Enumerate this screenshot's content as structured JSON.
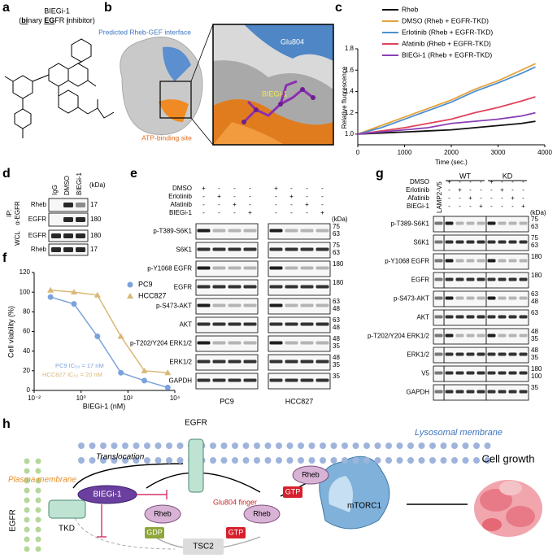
{
  "panel_labels": [
    "a",
    "b",
    "c",
    "d",
    "e",
    "f",
    "g",
    "h"
  ],
  "a": {
    "title": "BIEGi-1",
    "subtitle_parts": [
      "(",
      "bi",
      "nary ",
      "EG",
      "FR ",
      "i",
      "nhibitor)"
    ]
  },
  "b": {
    "interface_label": "Predicted Rheb-GEF interface",
    "atp_label": "ATP-binding site",
    "residue_label": "Glu804",
    "ligand_label": "BIEGi-1"
  },
  "chart_data": [
    {
      "type": "line",
      "y_label": "Relative fluorescence",
      "x_label": "Time (sec.)",
      "x": [
        0,
        500,
        1000,
        1500,
        2000,
        2500,
        3000,
        3500,
        3800
      ],
      "series": [
        {
          "name": "Rheb",
          "color": "#111111",
          "values": [
            1.0,
            1.01,
            1.02,
            1.03,
            1.04,
            1.06,
            1.08,
            1.1,
            1.12
          ]
        },
        {
          "name": "DMSO (Rheb + EGFR-TKD)",
          "color": "#e4a33b",
          "values": [
            1.0,
            1.08,
            1.16,
            1.24,
            1.32,
            1.42,
            1.5,
            1.6,
            1.66
          ]
        },
        {
          "name": "Erlotinib (Rheb + EGFR-TKD)",
          "color": "#4b8fd0",
          "values": [
            1.0,
            1.06,
            1.14,
            1.22,
            1.3,
            1.4,
            1.48,
            1.57,
            1.63
          ]
        },
        {
          "name": "Afatinib (Rheb + EGFR-TKD)",
          "color": "#e0435c",
          "values": [
            1.0,
            1.03,
            1.06,
            1.1,
            1.14,
            1.2,
            1.25,
            1.31,
            1.35
          ]
        },
        {
          "name": "BIEGi-1 (Rheb + EGFR-TKD)",
          "color": "#8b3fb5",
          "values": [
            1.0,
            1.02,
            1.04,
            1.06,
            1.1,
            1.12,
            1.14,
            1.17,
            1.2
          ]
        }
      ],
      "xlim": [
        0,
        4000
      ],
      "xticks": [
        0,
        1000,
        2000,
        3000,
        4000
      ],
      "ylim": [
        0.9,
        1.8
      ],
      "yticks": [
        {
          "value": 1,
          "label": "1.0"
        },
        {
          "value": 1.2,
          "label": "1.2"
        },
        {
          "value": 1.4,
          "label": "1.4"
        },
        {
          "value": 1.6,
          "label": "1.6"
        },
        {
          "value": 1.8,
          "label": "1.8"
        }
      ],
      "legend": "top-right"
    },
    {
      "type": "scatter",
      "y_label": "Cell viability (%)",
      "x_label": "BIEGi-1 (nM)",
      "log_x": true,
      "x": [
        0.05,
        0.5,
        5,
        50,
        500,
        5000
      ],
      "series": [
        {
          "name": "PC9",
          "color": "#7ba3dc",
          "marker": "circle",
          "values": [
            95,
            88,
            55,
            18,
            10,
            3
          ]
        },
        {
          "name": "HCC827",
          "color": "#d9b877",
          "marker": "triangle",
          "values": [
            102,
            100,
            97,
            55,
            20,
            18
          ]
        }
      ],
      "annotations": [
        "PC9 IC₅₀ = 17 nM",
        "HCC827 IC₅₀ = 20 nM"
      ],
      "xlim": [
        0.01,
        10000
      ],
      "xticks": [
        {
          "value": 0.01,
          "label": "10⁻²"
        },
        {
          "value": 1,
          "label": "10⁰"
        },
        {
          "value": 100,
          "label": "10²"
        },
        {
          "value": 10000,
          "label": "10⁴"
        }
      ],
      "ylim": [
        0,
        120
      ],
      "yticks": [
        0,
        20,
        40,
        60,
        80,
        100,
        120
      ],
      "legend": "top-right"
    }
  ],
  "d": {
    "ip": "IP:",
    "antibody": "α-EGFR",
    "wcl": "WCL",
    "lanes": [
      "IgG",
      "DMSO",
      "BIEGi-1"
    ],
    "rows": [
      "Rheb",
      "EGFR",
      "EGFR",
      "Rheb"
    ],
    "kda": [
      "17",
      "180",
      "180",
      "17"
    ],
    "unit": "(kDa)"
  },
  "e": {
    "treatments": [
      "DMSO",
      "Erlotinib",
      "Afatinib",
      "BIEGi-1"
    ],
    "signs": [
      [
        "+",
        "-",
        "-",
        "-",
        "+",
        "-",
        "-",
        "-"
      ],
      [
        "-",
        "+",
        "-",
        "-",
        "-",
        "+",
        "-",
        "-"
      ],
      [
        "-",
        "-",
        "+",
        "-",
        "-",
        "-",
        "+",
        "-"
      ],
      [
        "-",
        "-",
        "-",
        "+",
        "-",
        "-",
        "-",
        "+"
      ]
    ],
    "unit": "(kDa)",
    "rows": [
      "p-T389-S6K1",
      "S6K1",
      "p-Y1068 EGFR",
      "EGFR",
      "p-S473-AKT",
      "AKT",
      "p-T202/Y204 ERK1/2",
      "ERK1/2",
      "GAPDH"
    ],
    "kda": [
      [
        "75",
        "63"
      ],
      [
        "75",
        "63"
      ],
      [
        "180"
      ],
      [
        "180"
      ],
      [
        "63",
        "48"
      ],
      [
        "63",
        "48"
      ],
      [
        "48",
        "35"
      ],
      [
        "48",
        "35"
      ],
      [
        "35"
      ]
    ],
    "cells": [
      "PC9",
      "HCC827"
    ]
  },
  "g": {
    "treatments": [
      "DMSO",
      "Erlotinib",
      "Afatinib",
      "BIEGi-1"
    ],
    "construct": "LAMP2-V5",
    "groups": [
      "WT",
      "KD"
    ],
    "signs": [
      [
        "+",
        "-",
        "-",
        "-",
        "+",
        "-",
        "-",
        "-"
      ],
      [
        "-",
        "+",
        "-",
        "-",
        "-",
        "+",
        "-",
        "-"
      ],
      [
        "-",
        "-",
        "+",
        "-",
        "-",
        "-",
        "+",
        "-"
      ],
      [
        "-",
        "-",
        "-",
        "+",
        "-",
        "-",
        "-",
        "+"
      ]
    ],
    "unit": "(kDa)",
    "rows": [
      "p-T389-S6K1",
      "S6K1",
      "p-Y1068 EGFR",
      "EGFR",
      "p-S473-AKT",
      "AKT",
      "p-T202/Y204 ERK1/2",
      "ERK1/2",
      "V5",
      "GAPDH"
    ],
    "kda": [
      [
        "75",
        "63"
      ],
      [
        "75",
        "63"
      ],
      [
        "180"
      ],
      [
        "180"
      ],
      [
        "63",
        "48"
      ],
      [
        "63"
      ],
      [
        "48",
        "35"
      ],
      [
        "48",
        "35"
      ],
      [
        "180",
        "100"
      ],
      [
        "35"
      ]
    ]
  },
  "h": {
    "plasma": "Plasma membrane",
    "egfr_left": "EGFR",
    "tkd": "TKD",
    "translocation": "Translocation",
    "inhibitor": "BIEGi-1",
    "egfr_top": "EGFR",
    "finger": "Glu804 finger",
    "lysosome": "Lysosomal membrane",
    "rheb_gdp": "Rheb",
    "gdp": "GDP",
    "gtp": "GTP",
    "rheb_gtp": "Rheb",
    "tsc2": "TSC2",
    "rheb_lys": "Rheb",
    "gtp_lys": "GTP",
    "mtorc1": "mTORC1",
    "growth": "Cell growth"
  }
}
